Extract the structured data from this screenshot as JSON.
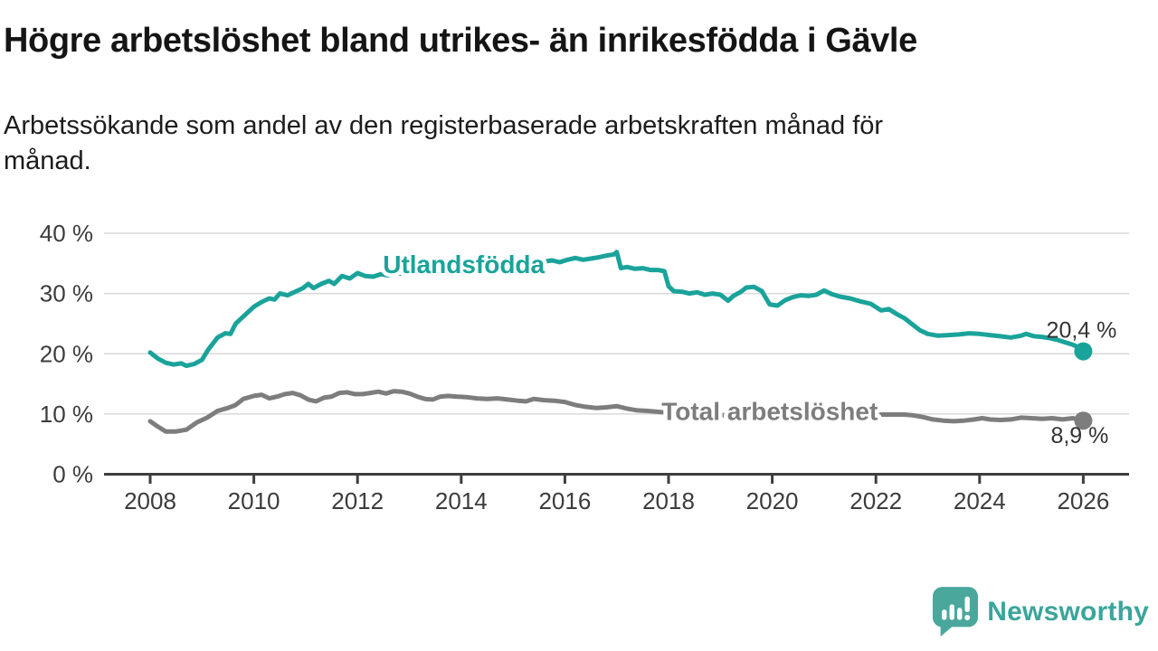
{
  "title": "Högre arbetslöshet bland utrikes- än inrikesfödda i Gävle",
  "subtitle": "Arbetssökande som andel av den registerbaserade arbetskraften månad för\nmånad.",
  "logo": {
    "brand": "Newsworthy"
  },
  "colors": {
    "accent_teal": "#1aa39a",
    "series_gray": "#7d7d7d",
    "title_text": "#151515",
    "axis_text": "#3c3c3c",
    "value_label_text": "#333333",
    "gridline": "#d9d9d9",
    "axis_line": "#3e3e3e",
    "logo_text": "#3aa59b",
    "logo_bubble": "#4aa79c"
  },
  "chart_data": {
    "type": "line",
    "grid": true,
    "ylim": [
      0,
      40
    ],
    "xlim": [
      2007.1,
      2026.9
    ],
    "x_ticks": [
      2008,
      2010,
      2012,
      2014,
      2016,
      2018,
      2020,
      2022,
      2024,
      2026
    ],
    "y_ticks": [
      {
        "value": 40,
        "label": "40 %"
      },
      {
        "value": 30,
        "label": "30 %"
      },
      {
        "value": 20,
        "label": "20 %"
      },
      {
        "value": 10,
        "label": "10 %"
      },
      {
        "value": 0,
        "label": "0 %"
      }
    ],
    "series": [
      {
        "name": "Utlandsfödda",
        "slug": "utlandsfodda",
        "color": "#1aa39a",
        "end_value_label": "20,4 %",
        "end_value": 20.4,
        "label_anchor": {
          "year": 2014.05,
          "value": 33.4
        },
        "points": [
          [
            2008.0,
            20.2
          ],
          [
            2008.15,
            19.2
          ],
          [
            2008.3,
            18.5
          ],
          [
            2008.45,
            18.2
          ],
          [
            2008.6,
            18.4
          ],
          [
            2008.7,
            18.0
          ],
          [
            2008.85,
            18.3
          ],
          [
            2009.0,
            19.0
          ],
          [
            2009.12,
            20.7
          ],
          [
            2009.3,
            22.7
          ],
          [
            2009.45,
            23.4
          ],
          [
            2009.55,
            23.3
          ],
          [
            2009.65,
            25.0
          ],
          [
            2009.8,
            26.2
          ],
          [
            2010.0,
            27.8
          ],
          [
            2010.15,
            28.6
          ],
          [
            2010.3,
            29.2
          ],
          [
            2010.4,
            29.0
          ],
          [
            2010.5,
            30.0
          ],
          [
            2010.65,
            29.7
          ],
          [
            2010.8,
            30.3
          ],
          [
            2010.95,
            30.9
          ],
          [
            2011.05,
            31.6
          ],
          [
            2011.15,
            30.9
          ],
          [
            2011.3,
            31.6
          ],
          [
            2011.45,
            32.1
          ],
          [
            2011.55,
            31.6
          ],
          [
            2011.7,
            32.9
          ],
          [
            2011.85,
            32.5
          ],
          [
            2012.0,
            33.4
          ],
          [
            2012.15,
            32.9
          ],
          [
            2012.3,
            32.8
          ],
          [
            2012.45,
            33.2
          ],
          [
            2012.6,
            33.0
          ],
          [
            2012.8,
            33.3
          ],
          [
            2013.0,
            33.5
          ],
          [
            2013.3,
            33.7
          ],
          [
            2013.6,
            33.9
          ],
          [
            2013.9,
            34.1
          ],
          [
            2014.2,
            34.3
          ],
          [
            2014.5,
            34.5
          ],
          [
            2014.8,
            34.7
          ],
          [
            2015.1,
            34.9
          ],
          [
            2015.4,
            35.1
          ],
          [
            2015.6,
            35.3
          ],
          [
            2015.75,
            35.5
          ],
          [
            2015.9,
            35.2
          ],
          [
            2016.05,
            35.6
          ],
          [
            2016.2,
            35.9
          ],
          [
            2016.35,
            35.6
          ],
          [
            2016.5,
            35.8
          ],
          [
            2016.65,
            36.0
          ],
          [
            2016.8,
            36.3
          ],
          [
            2016.95,
            36.5
          ],
          [
            2017.0,
            36.9
          ],
          [
            2017.08,
            34.2
          ],
          [
            2017.2,
            34.4
          ],
          [
            2017.35,
            34.1
          ],
          [
            2017.5,
            34.2
          ],
          [
            2017.65,
            33.9
          ],
          [
            2017.8,
            33.9
          ],
          [
            2017.92,
            33.7
          ],
          [
            2018.0,
            31.2
          ],
          [
            2018.1,
            30.4
          ],
          [
            2018.25,
            30.3
          ],
          [
            2018.4,
            30.0
          ],
          [
            2018.55,
            30.2
          ],
          [
            2018.7,
            29.8
          ],
          [
            2018.85,
            30.0
          ],
          [
            2019.0,
            29.8
          ],
          [
            2019.15,
            28.8
          ],
          [
            2019.25,
            29.6
          ],
          [
            2019.4,
            30.3
          ],
          [
            2019.5,
            31.0
          ],
          [
            2019.65,
            31.1
          ],
          [
            2019.8,
            30.4
          ],
          [
            2019.95,
            28.2
          ],
          [
            2020.1,
            28.0
          ],
          [
            2020.25,
            28.9
          ],
          [
            2020.4,
            29.4
          ],
          [
            2020.55,
            29.7
          ],
          [
            2020.7,
            29.6
          ],
          [
            2020.85,
            29.8
          ],
          [
            2021.0,
            30.5
          ],
          [
            2021.15,
            29.9
          ],
          [
            2021.3,
            29.5
          ],
          [
            2021.5,
            29.2
          ],
          [
            2021.7,
            28.7
          ],
          [
            2021.9,
            28.3
          ],
          [
            2022.1,
            27.2
          ],
          [
            2022.25,
            27.4
          ],
          [
            2022.4,
            26.6
          ],
          [
            2022.55,
            25.9
          ],
          [
            2022.7,
            24.9
          ],
          [
            2022.85,
            23.9
          ],
          [
            2023.0,
            23.3
          ],
          [
            2023.2,
            23.0
          ],
          [
            2023.4,
            23.1
          ],
          [
            2023.6,
            23.2
          ],
          [
            2023.8,
            23.4
          ],
          [
            2024.0,
            23.3
          ],
          [
            2024.2,
            23.1
          ],
          [
            2024.4,
            22.9
          ],
          [
            2024.6,
            22.7
          ],
          [
            2024.8,
            23.0
          ],
          [
            2024.9,
            23.3
          ],
          [
            2025.05,
            22.9
          ],
          [
            2025.2,
            22.8
          ],
          [
            2025.35,
            22.6
          ],
          [
            2025.5,
            22.3
          ],
          [
            2025.65,
            21.9
          ],
          [
            2025.8,
            21.5
          ],
          [
            2025.9,
            21.1
          ],
          [
            2026.0,
            20.4
          ]
        ]
      },
      {
        "name": "Total arbetslöshet",
        "slug": "total-arbetsloshet",
        "color": "#7d7d7d",
        "end_value_label": "8,9 %",
        "end_value": 8.9,
        "label_anchor": {
          "year": 2019.95,
          "value": 9.0
        },
        "points": [
          [
            2008.0,
            8.8
          ],
          [
            2008.15,
            7.9
          ],
          [
            2008.3,
            7.1
          ],
          [
            2008.5,
            7.1
          ],
          [
            2008.7,
            7.4
          ],
          [
            2008.9,
            8.6
          ],
          [
            2009.1,
            9.4
          ],
          [
            2009.3,
            10.5
          ],
          [
            2009.5,
            11.0
          ],
          [
            2009.65,
            11.5
          ],
          [
            2009.8,
            12.5
          ],
          [
            2010.0,
            13.0
          ],
          [
            2010.15,
            13.2
          ],
          [
            2010.3,
            12.6
          ],
          [
            2010.45,
            12.9
          ],
          [
            2010.6,
            13.3
          ],
          [
            2010.75,
            13.5
          ],
          [
            2010.9,
            13.1
          ],
          [
            2011.05,
            12.4
          ],
          [
            2011.2,
            12.1
          ],
          [
            2011.35,
            12.7
          ],
          [
            2011.5,
            12.9
          ],
          [
            2011.65,
            13.5
          ],
          [
            2011.8,
            13.6
          ],
          [
            2011.95,
            13.3
          ],
          [
            2012.1,
            13.3
          ],
          [
            2012.25,
            13.5
          ],
          [
            2012.4,
            13.7
          ],
          [
            2012.55,
            13.4
          ],
          [
            2012.7,
            13.8
          ],
          [
            2012.85,
            13.7
          ],
          [
            2013.0,
            13.4
          ],
          [
            2013.15,
            12.9
          ],
          [
            2013.3,
            12.5
          ],
          [
            2013.45,
            12.4
          ],
          [
            2013.6,
            12.9
          ],
          [
            2013.75,
            13.0
          ],
          [
            2013.9,
            12.9
          ],
          [
            2014.1,
            12.8
          ],
          [
            2014.3,
            12.6
          ],
          [
            2014.5,
            12.5
          ],
          [
            2014.7,
            12.6
          ],
          [
            2014.9,
            12.4
          ],
          [
            2015.1,
            12.2
          ],
          [
            2015.25,
            12.1
          ],
          [
            2015.4,
            12.5
          ],
          [
            2015.6,
            12.3
          ],
          [
            2015.8,
            12.2
          ],
          [
            2016.0,
            12.0
          ],
          [
            2016.2,
            11.5
          ],
          [
            2016.4,
            11.2
          ],
          [
            2016.6,
            11.0
          ],
          [
            2016.8,
            11.1
          ],
          [
            2017.0,
            11.3
          ],
          [
            2017.2,
            10.9
          ],
          [
            2017.4,
            10.6
          ],
          [
            2017.6,
            10.5
          ],
          [
            2018.0,
            10.2
          ],
          [
            2018.5,
            10.0
          ],
          [
            2019.0,
            9.8
          ],
          [
            2019.5,
            10.0
          ],
          [
            2020.0,
            10.4
          ],
          [
            2020.5,
            10.6
          ],
          [
            2021.0,
            10.3
          ],
          [
            2021.5,
            10.0
          ],
          [
            2022.0,
            9.9
          ],
          [
            2022.3,
            9.9
          ],
          [
            2022.55,
            9.9
          ],
          [
            2022.7,
            9.8
          ],
          [
            2022.9,
            9.5
          ],
          [
            2023.1,
            9.1
          ],
          [
            2023.3,
            8.9
          ],
          [
            2023.5,
            8.8
          ],
          [
            2023.7,
            8.9
          ],
          [
            2023.9,
            9.1
          ],
          [
            2024.05,
            9.3
          ],
          [
            2024.2,
            9.1
          ],
          [
            2024.4,
            9.0
          ],
          [
            2024.6,
            9.1
          ],
          [
            2024.8,
            9.4
          ],
          [
            2025.0,
            9.3
          ],
          [
            2025.2,
            9.2
          ],
          [
            2025.4,
            9.3
          ],
          [
            2025.6,
            9.1
          ],
          [
            2025.8,
            9.3
          ],
          [
            2026.0,
            8.9
          ]
        ]
      }
    ]
  }
}
